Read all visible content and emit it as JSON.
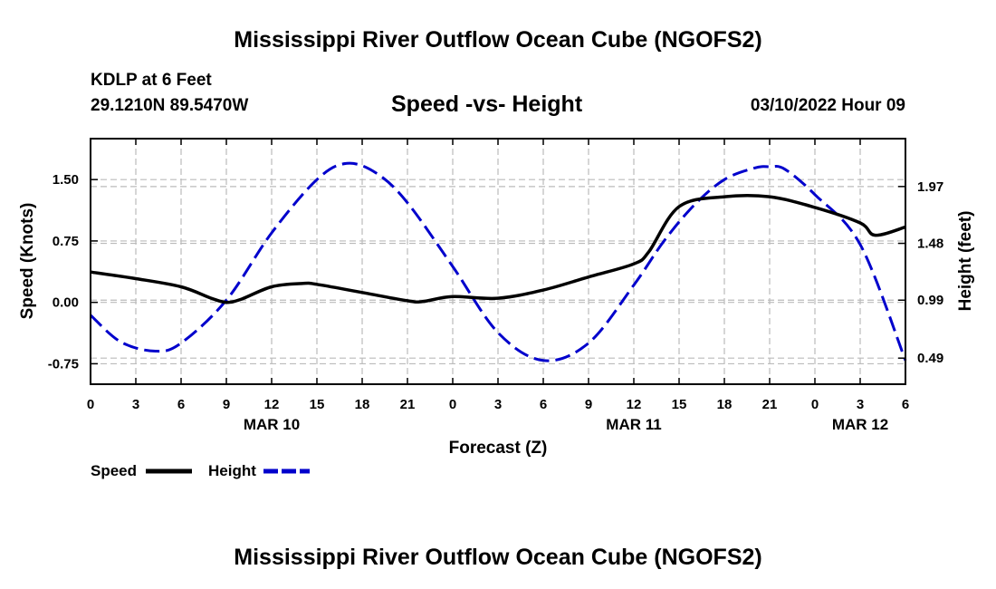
{
  "header": {
    "title": "Mississippi River Outflow Ocean Cube (NGOFS2)",
    "station": "KDLP at 6 Feet",
    "coords": "29.1210N  89.5470W",
    "subtitle": "Speed -vs- Height",
    "datetime": "03/10/2022 Hour 09"
  },
  "footer": {
    "title": "Mississippi River Outflow Ocean Cube (NGOFS2)"
  },
  "colors": {
    "speed": "#000000",
    "height": "#0000cc",
    "grid": "#bbbbbb"
  },
  "chart_data": {
    "type": "line",
    "title": "Speed -vs- Height",
    "xlabel": "Forecast (Z)",
    "ylabel": "Speed (Knots)",
    "y2label": "Height (feet)",
    "xlim": [
      0,
      54
    ],
    "ylim": [
      -1.0,
      2.0
    ],
    "y2lim": [
      0.265,
      2.383
    ],
    "grid": true,
    "x_ticks": [
      0,
      3,
      6,
      9,
      12,
      15,
      18,
      21,
      24,
      27,
      30,
      33,
      36,
      39,
      42,
      45,
      48,
      51,
      54
    ],
    "x_tick_labels": [
      "0",
      "3",
      "6",
      "9",
      "12",
      "15",
      "18",
      "21",
      "0",
      "3",
      "6",
      "9",
      "12",
      "15",
      "18",
      "21",
      "0",
      "3",
      "6"
    ],
    "date_labels": [
      {
        "x": 12,
        "label": "MAR 10"
      },
      {
        "x": 36,
        "label": "MAR 11"
      },
      {
        "x": 51,
        "label": "MAR 12"
      }
    ],
    "y_ticks": [
      1.5,
      0.75,
      0.0,
      -0.75
    ],
    "y_tick_labels": [
      "1.50",
      "0.75",
      "0.00",
      "-0.75"
    ],
    "y2_ticks": [
      1.97,
      1.48,
      0.99,
      0.49
    ],
    "y2_tick_labels": [
      "1.97",
      "1.48",
      "0.99",
      "0.49"
    ],
    "legend": [
      {
        "name": "Speed",
        "style": "solid"
      },
      {
        "name": "Height",
        "style": "dashed"
      }
    ],
    "series": [
      {
        "name": "Speed",
        "axis": "left",
        "style": "solid",
        "x": [
          0,
          3,
          6,
          8,
          9,
          10,
          12,
          14,
          15,
          18,
          21,
          22,
          24,
          27,
          30,
          33,
          36,
          37,
          39,
          42,
          45,
          48,
          51,
          52,
          54
        ],
        "values": [
          0.37,
          0.29,
          0.19,
          0.05,
          0.0,
          0.04,
          0.19,
          0.23,
          0.22,
          0.12,
          0.02,
          0.01,
          0.07,
          0.05,
          0.15,
          0.31,
          0.47,
          0.62,
          1.17,
          1.29,
          1.29,
          1.16,
          0.97,
          0.82,
          0.92
        ]
      },
      {
        "name": "Height",
        "axis": "right",
        "style": "dashed",
        "x": [
          0,
          2,
          4.3,
          6,
          9,
          12,
          15,
          17,
          19,
          21,
          24,
          27,
          30,
          33,
          36,
          38,
          40,
          42,
          44,
          45,
          46,
          48,
          51,
          54
        ],
        "values": [
          0.86,
          0.63,
          0.55,
          0.62,
          0.99,
          1.57,
          2.03,
          2.17,
          2.08,
          1.83,
          1.28,
          0.71,
          0.47,
          0.62,
          1.12,
          1.5,
          1.81,
          2.03,
          2.13,
          2.14,
          2.12,
          1.9,
          1.47,
          0.47
        ]
      }
    ]
  }
}
